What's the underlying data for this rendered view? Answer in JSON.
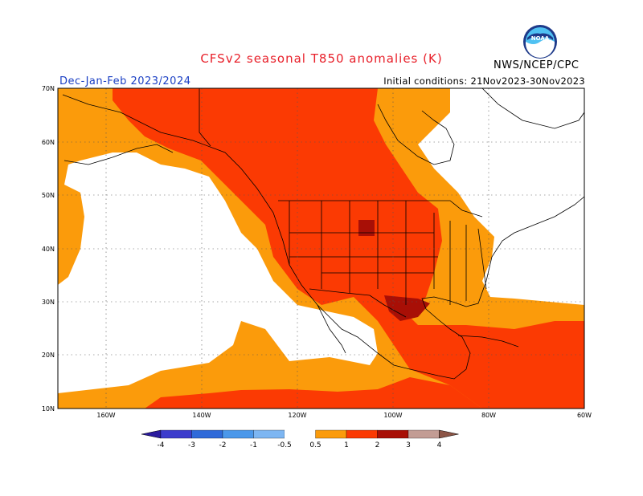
{
  "header": {
    "title": "CFSv2 seasonal T850 anomalies (K)",
    "title_color": "#e8202a",
    "season": "Dec-Jan-Feb 2023/2024",
    "season_color": "#1a3fc4",
    "initial_conditions": "Initial conditions: 21Nov2023-30Nov2023",
    "agency": "NWS/NCEP/CPC",
    "logo_icon": "noaa-logo-icon"
  },
  "map": {
    "lat_labels": [
      "70N",
      "60N",
      "50N",
      "40N",
      "30N",
      "20N",
      "10N"
    ],
    "lon_labels": [
      "160W",
      "140W",
      "120W",
      "100W",
      "80W",
      "60W"
    ]
  },
  "colorbar": {
    "labels": [
      "-4",
      "-3",
      "-2",
      "-1",
      "-0.5",
      "0.5",
      "1",
      "2",
      "3",
      "4"
    ],
    "colors": [
      "#2a1b9e",
      "#3c3ccc",
      "#2f6ad9",
      "#4b98ea",
      "#7db6f2",
      "#ffffff",
      "#fb9b0b",
      "#fb3a03",
      "#a80f06",
      "#c29c94",
      "#8c5546"
    ]
  },
  "colors": {
    "band_0_5_1": "#fb9b0b",
    "band_1_2": "#fb3a03",
    "band_2_3": "#a80f06",
    "land_outline": "#000000"
  }
}
